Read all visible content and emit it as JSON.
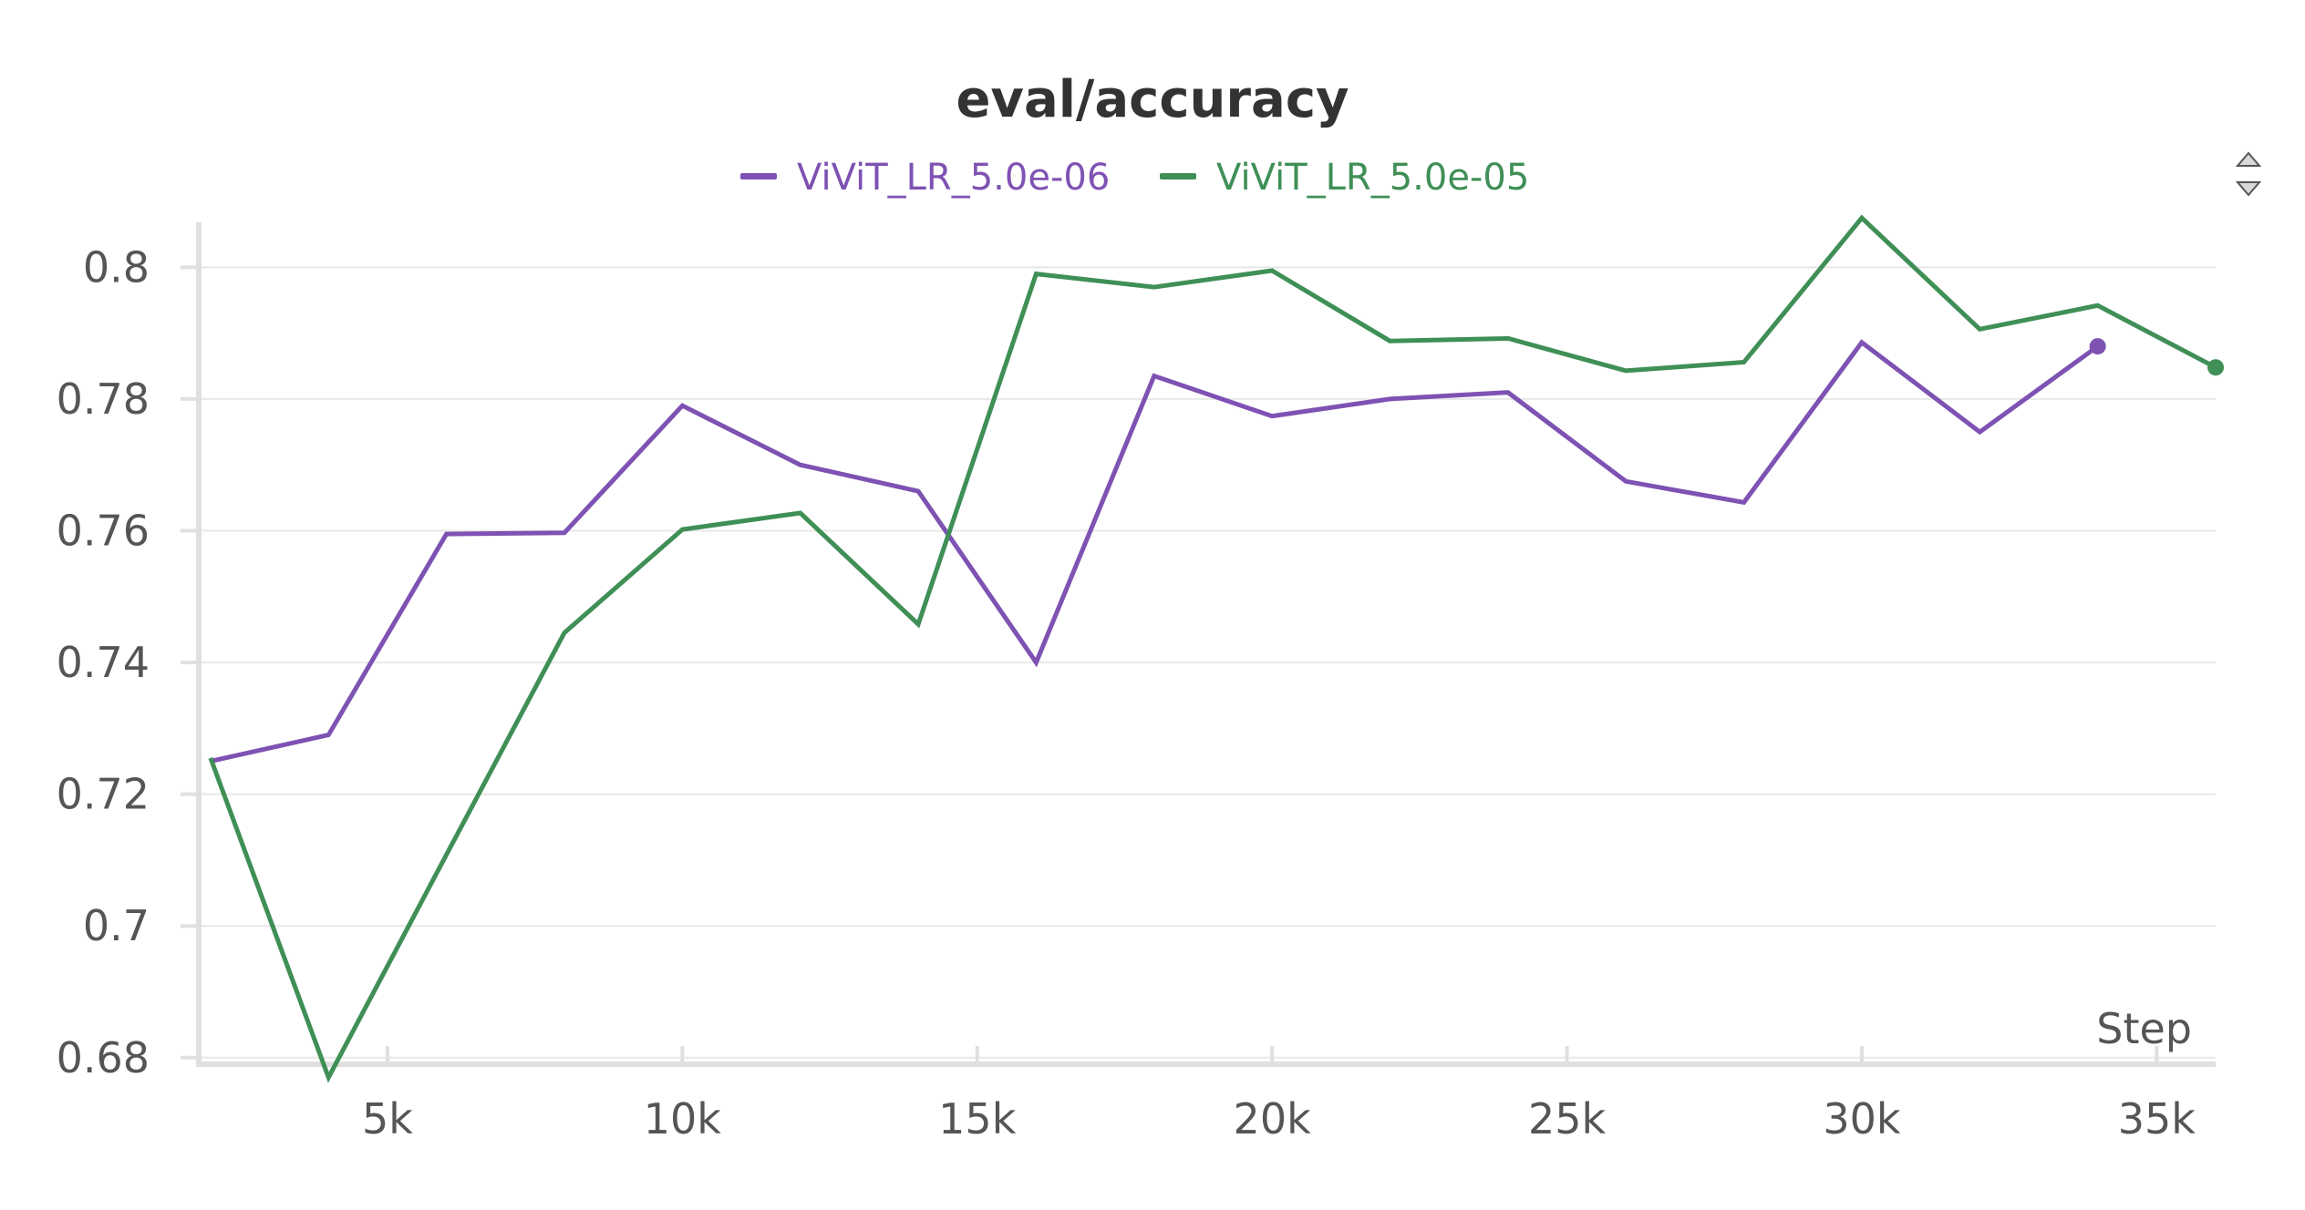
{
  "colors": {
    "series_purple": "#7e52b3",
    "series_green": "#3f8f56",
    "grid": "#e8e8e8",
    "axis": "#e0e0e0",
    "text": "#555555",
    "title": "#333333"
  },
  "icons": {
    "panel_toggle": "sort-arrows-icon"
  },
  "chart_data": {
    "type": "line",
    "title": "eval/accuracy",
    "xlabel": "Step",
    "ylabel": "",
    "xlim": [
      1800,
      36000
    ],
    "ylim": [
      0.679,
      0.806
    ],
    "grid": true,
    "legend_position": "top-center",
    "x_ticks": [
      {
        "value": 5000,
        "label": "5k"
      },
      {
        "value": 10000,
        "label": "10k"
      },
      {
        "value": 15000,
        "label": "15k"
      },
      {
        "value": 20000,
        "label": "20k"
      },
      {
        "value": 25000,
        "label": "25k"
      },
      {
        "value": 30000,
        "label": "30k"
      },
      {
        "value": 35000,
        "label": "35k"
      }
    ],
    "y_ticks": [
      {
        "value": 0.68,
        "label": "0.68"
      },
      {
        "value": 0.7,
        "label": "0.7"
      },
      {
        "value": 0.72,
        "label": "0.72"
      },
      {
        "value": 0.74,
        "label": "0.74"
      },
      {
        "value": 0.76,
        "label": "0.76"
      },
      {
        "value": 0.78,
        "label": "0.78"
      },
      {
        "value": 0.8,
        "label": "0.8"
      }
    ],
    "series": [
      {
        "name": "ViViT_LR_5.0e-06",
        "color": "#7e52b3",
        "x": [
          2000,
          4000,
          6000,
          8000,
          10000,
          12000,
          14000,
          16000,
          18000,
          20000,
          22000,
          24000,
          26000,
          28000,
          30000,
          32000,
          34000
        ],
        "y": [
          0.725,
          0.729,
          0.7595,
          0.7597,
          0.779,
          0.77,
          0.766,
          0.74,
          0.7835,
          0.7774,
          0.78,
          0.781,
          0.7675,
          0.7643,
          0.7886,
          0.775,
          0.788
        ]
      },
      {
        "name": "ViViT_LR_5.0e-05",
        "color": "#3f8f56",
        "x": [
          2000,
          4000,
          6000,
          8000,
          10000,
          12000,
          14000,
          16000,
          18000,
          20000,
          22000,
          24000,
          26000,
          28000,
          30000,
          32000,
          34000,
          36000
        ],
        "y": [
          0.7255,
          0.677,
          0.7108,
          0.7445,
          0.7602,
          0.7627,
          0.7458,
          0.799,
          0.797,
          0.7995,
          0.7888,
          0.7892,
          0.7843,
          0.7856,
          0.8075,
          0.7906,
          0.7942,
          0.7848
        ]
      }
    ]
  }
}
